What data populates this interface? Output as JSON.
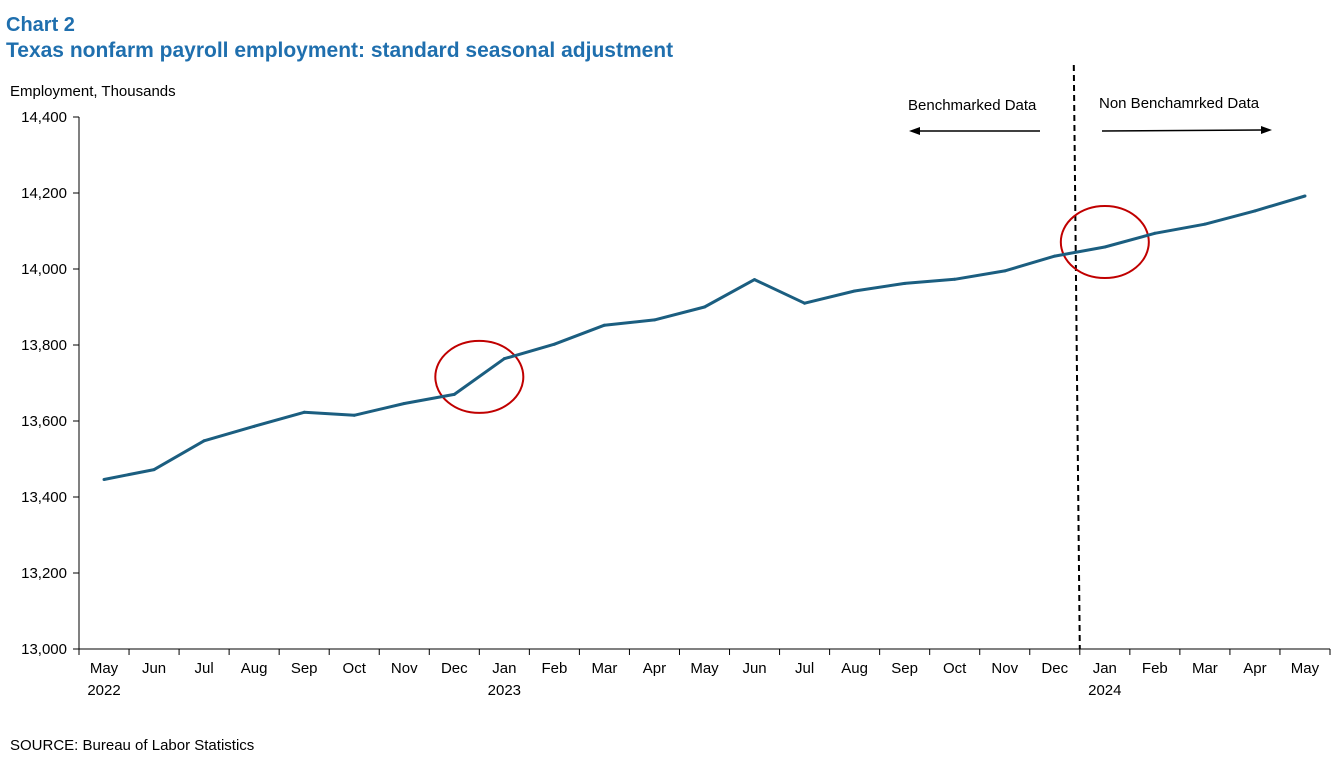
{
  "header": {
    "label": "Chart 2",
    "title": "Texas nonfarm payroll employment:  standard seasonal adjustment"
  },
  "footer": {
    "source": "SOURCE: Bureau of Labor Statistics"
  },
  "chart_data": {
    "type": "line",
    "ylabel": "Employment, Thousands",
    "ylim": [
      13000,
      14400
    ],
    "yticks": [
      13000,
      13200,
      13400,
      13600,
      13800,
      14000,
      14200,
      14400
    ],
    "ytick_labels": [
      "13,000",
      "13,200",
      "13,400",
      "13,600",
      "13,800",
      "14,000",
      "14,200",
      "14,400"
    ],
    "categories": [
      "May",
      "Jun",
      "Jul",
      "Aug",
      "Sep",
      "Oct",
      "Nov",
      "Dec",
      "Jan",
      "Feb",
      "Mar",
      "Apr",
      "May",
      "Jun",
      "Jul",
      "Aug",
      "Sep",
      "Oct",
      "Nov",
      "Dec",
      "Jan",
      "Feb",
      "Mar",
      "Apr",
      "May"
    ],
    "year_labels": [
      {
        "index": 0,
        "text": "2022"
      },
      {
        "index": 8,
        "text": "2023"
      },
      {
        "index": 20,
        "text": "2024"
      }
    ],
    "series": [
      {
        "name": "Texas nonfarm payroll employment",
        "color": "#1b5e80",
        "values": [
          13446,
          13472,
          13548,
          13586,
          13623,
          13615,
          13646,
          13670,
          13764,
          13802,
          13852,
          13866,
          13900,
          13972,
          13910,
          13942,
          13962,
          13973,
          13995,
          14034,
          14058,
          14094,
          14118,
          14153,
          14192
        ]
      }
    ],
    "annotations": {
      "divider_after_index": 19,
      "benchmarked_label": "Benchmarked Data",
      "non_benchmarked_label": "Non Benchamrked Data",
      "circles": [
        {
          "center_index": 7.5,
          "value": 13716,
          "color": "#c00000"
        },
        {
          "center_index": 20,
          "value": 14071,
          "color": "#c00000"
        }
      ]
    },
    "grid": false,
    "legend": "none"
  }
}
